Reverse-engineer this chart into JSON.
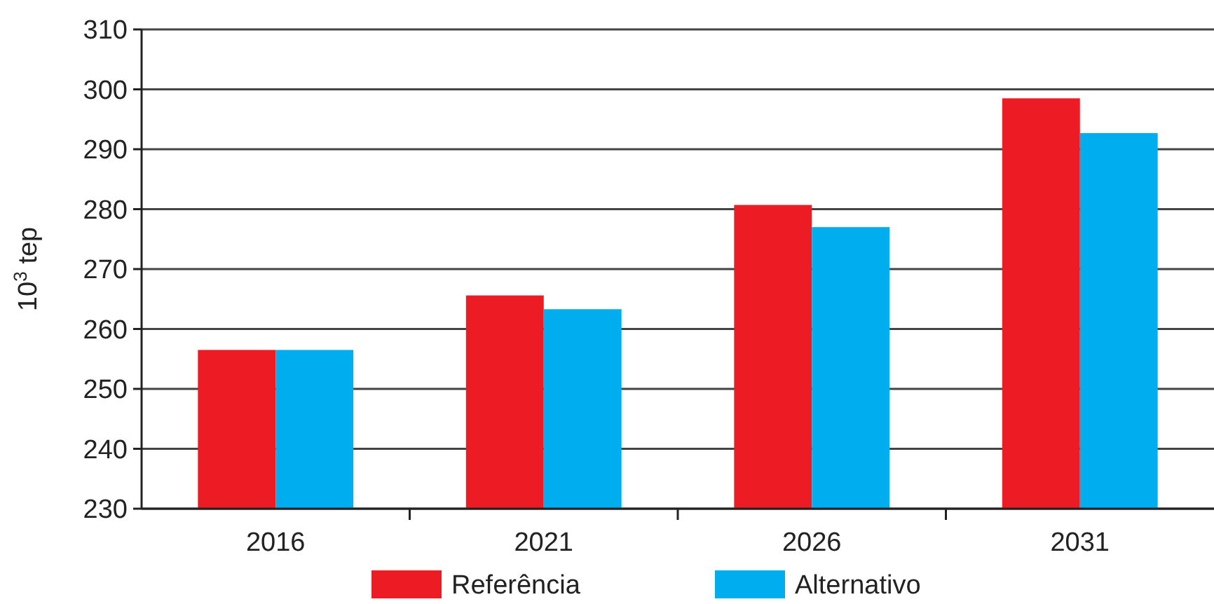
{
  "chart_data": {
    "type": "bar",
    "ylabel": "10$^{3}$ tep",
    "categories": [
      "2016",
      "2021",
      "2026",
      "2031"
    ],
    "series": [
      {
        "name": "Referência",
        "color": "#ed1c24",
        "values": [
          256.5,
          265.6,
          280.7,
          298.5
        ]
      },
      {
        "name": "Alternativo",
        "color": "#00aeef",
        "values": [
          256.5,
          263.3,
          277,
          292.7
        ]
      }
    ],
    "ylim": [
      230,
      310
    ],
    "yticks": [
      230,
      240,
      250,
      260,
      270,
      280,
      290,
      300,
      310
    ],
    "grid": "y",
    "legend": "bottom"
  }
}
